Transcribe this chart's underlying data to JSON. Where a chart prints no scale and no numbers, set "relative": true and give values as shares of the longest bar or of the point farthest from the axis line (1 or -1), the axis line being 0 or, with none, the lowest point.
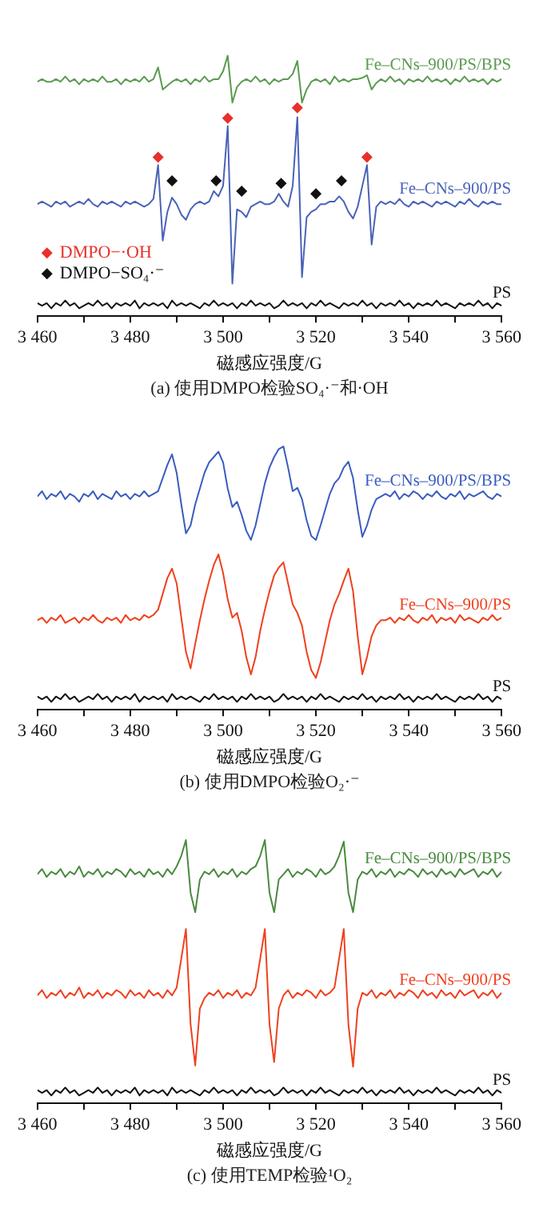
{
  "chart_data": [
    {
      "type": "line",
      "relative": true,
      "marker": "none",
      "legend": "bottom left",
      "xlabel": "磁感应强度/G",
      "xlim": [
        3460,
        3560
      ],
      "xticks": [
        {
          "value": 3460,
          "label": "3 460"
        },
        {
          "value": 3470,
          "label": null
        },
        {
          "value": 3480,
          "label": "3 480"
        },
        {
          "value": 3490,
          "label": null
        },
        {
          "value": 3500,
          "label": "3 500"
        },
        {
          "value": 3510,
          "label": null
        },
        {
          "value": 3520,
          "label": "3 520"
        },
        {
          "value": 3530,
          "label": null
        },
        {
          "value": 3540,
          "label": "3 540"
        },
        {
          "value": 3550,
          "label": null
        },
        {
          "value": 3560,
          "label": "3 560"
        }
      ],
      "annotations": [
        "(a) 使用DMPO检验SO₄·⁻和·OH"
      ],
      "x": [
        3460,
        3461,
        3462,
        3463,
        3464,
        3465,
        3466,
        3467,
        3468,
        3469,
        3470,
        3471,
        3472,
        3473,
        3474,
        3475,
        3476,
        3477,
        3478,
        3479,
        3480,
        3481,
        3482,
        3483,
        3484,
        3485,
        3486,
        3487,
        3488,
        3489,
        3490,
        3491,
        3492,
        3493,
        3494,
        3495,
        3496,
        3497,
        3498,
        3499,
        3500,
        3501,
        3502,
        3503,
        3504,
        3505,
        3506,
        3507,
        3508,
        3509,
        3510,
        3511,
        3512,
        3513,
        3514,
        3515,
        3516,
        3517,
        3518,
        3519,
        3520,
        3521,
        3522,
        3523,
        3524,
        3525,
        3526,
        3527,
        3528,
        3529,
        3530,
        3531,
        3532,
        3533,
        3534,
        3535,
        3536,
        3537,
        3538,
        3539,
        3540,
        3541,
        3542,
        3543,
        3544,
        3545,
        3546,
        3547,
        3548,
        3549,
        3550,
        3551,
        3552,
        3553,
        3554,
        3555,
        3556,
        3557,
        3558,
        3559,
        3560
      ],
      "series": [
        {
          "name": "Fe–CNs–900/PS/BPS",
          "color": "#5a9a50",
          "values": [
            0.9,
            0.91,
            0.9,
            0.9,
            0.91,
            0.9,
            0.92,
            0.9,
            0.91,
            0.89,
            0.91,
            0.9,
            0.91,
            0.9,
            0.92,
            0.9,
            0.9,
            0.91,
            0.89,
            0.91,
            0.9,
            0.91,
            0.9,
            0.92,
            0.9,
            0.91,
            0.955,
            0.87,
            0.885,
            0.9,
            0.91,
            0.9,
            0.91,
            0.89,
            0.91,
            0.9,
            0.92,
            0.9,
            0.91,
            0.91,
            0.94,
            1.0,
            0.82,
            0.88,
            0.9,
            0.91,
            0.9,
            0.92,
            0.9,
            0.91,
            0.89,
            0.91,
            0.9,
            0.91,
            0.91,
            0.93,
            0.98,
            0.82,
            0.87,
            0.9,
            0.91,
            0.9,
            0.91,
            0.89,
            0.92,
            0.9,
            0.91,
            0.9,
            0.91,
            0.91,
            0.915,
            0.925,
            0.87,
            0.895,
            0.91,
            0.9,
            0.92,
            0.9,
            0.91,
            0.89,
            0.91,
            0.9,
            0.91,
            0.9,
            0.92,
            0.9,
            0.91,
            0.9,
            0.91,
            0.89,
            0.91,
            0.9,
            0.92,
            0.9,
            0.91,
            0.9,
            0.91,
            0.89,
            0.91,
            0.9,
            0.91
          ]
        },
        {
          "name": "Fe–CNs–900/PS",
          "color": "#4a62b8",
          "values": [
            0.43,
            0.44,
            0.43,
            0.42,
            0.44,
            0.43,
            0.44,
            0.42,
            0.43,
            0.44,
            0.43,
            0.45,
            0.43,
            0.42,
            0.44,
            0.43,
            0.44,
            0.43,
            0.42,
            0.44,
            0.43,
            0.44,
            0.43,
            0.42,
            0.43,
            0.45,
            0.58,
            0.29,
            0.4,
            0.455,
            0.43,
            0.39,
            0.37,
            0.41,
            0.43,
            0.44,
            0.43,
            0.44,
            0.48,
            0.46,
            0.5,
            0.73,
            0.125,
            0.41,
            0.4,
            0.38,
            0.42,
            0.43,
            0.44,
            0.43,
            0.43,
            0.44,
            0.47,
            0.44,
            0.42,
            0.5,
            0.764,
            0.15,
            0.38,
            0.4,
            0.41,
            0.43,
            0.43,
            0.44,
            0.44,
            0.46,
            0.44,
            0.4,
            0.375,
            0.42,
            0.5,
            0.58,
            0.275,
            0.42,
            0.44,
            0.43,
            0.44,
            0.43,
            0.45,
            0.43,
            0.42,
            0.44,
            0.43,
            0.44,
            0.43,
            0.42,
            0.44,
            0.43,
            0.44,
            0.43,
            0.42,
            0.44,
            0.43,
            0.45,
            0.43,
            0.42,
            0.44,
            0.43,
            0.44,
            0.43,
            0.43
          ]
        },
        {
          "name": "PS",
          "color": "#111111",
          "values": [
            0.05,
            0.04,
            0.05,
            0.03,
            0.05,
            0.04,
            0.06,
            0.04,
            0.05,
            0.03,
            0.04,
            0.05,
            0.04,
            0.06,
            0.04,
            0.05,
            0.03,
            0.05,
            0.04,
            0.05,
            0.04,
            0.06,
            0.03,
            0.05,
            0.04,
            0.05,
            0.04,
            0.05,
            0.03,
            0.06,
            0.04,
            0.05,
            0.04,
            0.05,
            0.04,
            0.03,
            0.05,
            0.04,
            0.06,
            0.04,
            0.05,
            0.04,
            0.05,
            0.03,
            0.05,
            0.04,
            0.06,
            0.04,
            0.05,
            0.04,
            0.05,
            0.03,
            0.04,
            0.06,
            0.04,
            0.05,
            0.04,
            0.05,
            0.03,
            0.05,
            0.04,
            0.06,
            0.04,
            0.05,
            0.04,
            0.03,
            0.05,
            0.04,
            0.05,
            0.04,
            0.06,
            0.04,
            0.05,
            0.03,
            0.05,
            0.04,
            0.05,
            0.04,
            0.06,
            0.04,
            0.05,
            0.03,
            0.05,
            0.04,
            0.05,
            0.04,
            0.06,
            0.04,
            0.05,
            0.04,
            0.03,
            0.05,
            0.04,
            0.05,
            0.04,
            0.06,
            0.04,
            0.05,
            0.03,
            0.05,
            0.04
          ]
        },
        {
          "name": "DMPO−·OH",
          "type": "scatter",
          "marker": "diamond",
          "color": "#e8302a",
          "x": [
            3486,
            3501,
            3516,
            3531
          ],
          "values": [
            0.61,
            0.76,
            0.8,
            0.61
          ]
        },
        {
          "name": "DMPO−SO₄·⁻",
          "type": "scatter",
          "marker": "diamond",
          "color": "#111111",
          "x": [
            3489,
            3498.5,
            3504,
            3512.5,
            3520,
            3525.5
          ],
          "values": [
            0.52,
            0.52,
            0.48,
            0.51,
            0.47,
            0.52
          ]
        }
      ]
    },
    {
      "type": "line",
      "relative": true,
      "marker": "none",
      "xlabel": "磁感应强度/G",
      "xlim": [
        3460,
        3560
      ],
      "xticks": [
        {
          "value": 3460,
          "label": "3 460"
        },
        {
          "value": 3470,
          "label": null
        },
        {
          "value": 3480,
          "label": "3 480"
        },
        {
          "value": 3490,
          "label": null
        },
        {
          "value": 3500,
          "label": "3 500"
        },
        {
          "value": 3510,
          "label": null
        },
        {
          "value": 3520,
          "label": "3 520"
        },
        {
          "value": 3530,
          "label": null
        },
        {
          "value": 3540,
          "label": "3 540"
        },
        {
          "value": 3550,
          "label": null
        },
        {
          "value": 3560,
          "label": "3 560"
        }
      ],
      "annotations": [
        "(b) 使用DMPO检验O₂·⁻"
      ],
      "x": [
        3460,
        3461,
        3462,
        3463,
        3464,
        3465,
        3466,
        3467,
        3468,
        3469,
        3470,
        3471,
        3472,
        3473,
        3474,
        3475,
        3476,
        3477,
        3478,
        3479,
        3480,
        3481,
        3482,
        3483,
        3484,
        3485,
        3486,
        3487,
        3488,
        3489,
        3490,
        3491,
        3492,
        3493,
        3494,
        3495,
        3496,
        3497,
        3498,
        3499,
        3500,
        3501,
        3502,
        3503,
        3504,
        3505,
        3506,
        3507,
        3508,
        3509,
        3510,
        3511,
        3512,
        3513,
        3514,
        3515,
        3516,
        3517,
        3518,
        3519,
        3520,
        3521,
        3522,
        3523,
        3524,
        3525,
        3526,
        3527,
        3528,
        3529,
        3530,
        3531,
        3532,
        3533,
        3534,
        3535,
        3536,
        3537,
        3538,
        3539,
        3540,
        3541,
        3542,
        3543,
        3544,
        3545,
        3546,
        3547,
        3548,
        3549,
        3550,
        3551,
        3552,
        3553,
        3554,
        3555,
        3556,
        3557,
        3558,
        3559,
        3560
      ],
      "series": [
        {
          "name": "Fe–CNs–900/PS/BPS",
          "color": "#3a5cc0",
          "values": [
            0.81,
            0.83,
            0.8,
            0.82,
            0.81,
            0.83,
            0.8,
            0.82,
            0.81,
            0.79,
            0.82,
            0.81,
            0.83,
            0.8,
            0.82,
            0.81,
            0.8,
            0.83,
            0.81,
            0.82,
            0.8,
            0.82,
            0.81,
            0.83,
            0.81,
            0.82,
            0.83,
            0.88,
            0.93,
            0.97,
            0.9,
            0.78,
            0.67,
            0.7,
            0.78,
            0.84,
            0.9,
            0.94,
            0.96,
            0.98,
            0.94,
            0.84,
            0.77,
            0.79,
            0.74,
            0.68,
            0.645,
            0.7,
            0.78,
            0.86,
            0.92,
            0.96,
            0.99,
            1.0,
            0.92,
            0.83,
            0.843,
            0.8,
            0.72,
            0.66,
            0.645,
            0.7,
            0.76,
            0.82,
            0.86,
            0.88,
            0.92,
            0.942,
            0.88,
            0.76,
            0.657,
            0.7,
            0.76,
            0.8,
            0.81,
            0.82,
            0.81,
            0.83,
            0.8,
            0.82,
            0.81,
            0.83,
            0.82,
            0.8,
            0.82,
            0.81,
            0.83,
            0.81,
            0.8,
            0.82,
            0.81,
            0.83,
            0.8,
            0.82,
            0.81,
            0.82,
            0.83,
            0.81,
            0.8,
            0.82,
            0.81
          ]
        },
        {
          "name": "Fe–CNs–900/PS",
          "color": "#f0401e",
          "values": [
            0.34,
            0.35,
            0.33,
            0.35,
            0.34,
            0.36,
            0.33,
            0.34,
            0.35,
            0.33,
            0.35,
            0.34,
            0.36,
            0.34,
            0.33,
            0.35,
            0.34,
            0.35,
            0.33,
            0.36,
            0.34,
            0.35,
            0.34,
            0.36,
            0.35,
            0.36,
            0.38,
            0.44,
            0.5,
            0.536,
            0.48,
            0.35,
            0.22,
            0.157,
            0.25,
            0.34,
            0.42,
            0.49,
            0.55,
            0.59,
            0.52,
            0.42,
            0.35,
            0.368,
            0.3,
            0.2,
            0.134,
            0.2,
            0.3,
            0.38,
            0.45,
            0.51,
            0.54,
            0.56,
            0.48,
            0.4,
            0.368,
            0.32,
            0.22,
            0.15,
            0.121,
            0.18,
            0.26,
            0.34,
            0.4,
            0.44,
            0.49,
            0.536,
            0.45,
            0.28,
            0.135,
            0.2,
            0.28,
            0.32,
            0.34,
            0.34,
            0.35,
            0.33,
            0.35,
            0.34,
            0.36,
            0.34,
            0.33,
            0.35,
            0.34,
            0.36,
            0.33,
            0.35,
            0.34,
            0.35,
            0.33,
            0.36,
            0.34,
            0.35,
            0.34,
            0.33,
            0.35,
            0.34,
            0.36,
            0.34,
            0.35
          ]
        },
        {
          "name": "PS",
          "color": "#111111",
          "values": [
            0.05,
            0.04,
            0.05,
            0.03,
            0.05,
            0.04,
            0.06,
            0.04,
            0.05,
            0.03,
            0.04,
            0.05,
            0.04,
            0.06,
            0.04,
            0.05,
            0.03,
            0.05,
            0.04,
            0.05,
            0.04,
            0.06,
            0.03,
            0.05,
            0.04,
            0.05,
            0.04,
            0.05,
            0.03,
            0.06,
            0.04,
            0.05,
            0.04,
            0.05,
            0.04,
            0.03,
            0.05,
            0.04,
            0.06,
            0.04,
            0.05,
            0.04,
            0.05,
            0.03,
            0.05,
            0.04,
            0.06,
            0.04,
            0.05,
            0.04,
            0.05,
            0.03,
            0.04,
            0.06,
            0.04,
            0.05,
            0.04,
            0.05,
            0.03,
            0.05,
            0.04,
            0.06,
            0.04,
            0.05,
            0.04,
            0.03,
            0.05,
            0.04,
            0.05,
            0.04,
            0.06,
            0.04,
            0.05,
            0.03,
            0.05,
            0.04,
            0.05,
            0.04,
            0.06,
            0.04,
            0.05,
            0.03,
            0.05,
            0.04,
            0.05,
            0.04,
            0.06,
            0.04,
            0.05,
            0.04,
            0.03,
            0.05,
            0.04,
            0.05,
            0.04,
            0.06,
            0.04,
            0.05,
            0.03,
            0.05,
            0.04
          ]
        }
      ]
    },
    {
      "type": "line",
      "relative": true,
      "marker": "none",
      "xlabel": "磁感应强度/G",
      "xlim": [
        3460,
        3560
      ],
      "xticks": [
        {
          "value": 3460,
          "label": "3 460"
        },
        {
          "value": 3470,
          "label": null
        },
        {
          "value": 3480,
          "label": "3 480"
        },
        {
          "value": 3490,
          "label": null
        },
        {
          "value": 3500,
          "label": "3 500"
        },
        {
          "value": 3510,
          "label": null
        },
        {
          "value": 3520,
          "label": "3 520"
        },
        {
          "value": 3530,
          "label": null
        },
        {
          "value": 3540,
          "label": "3 540"
        },
        {
          "value": 3550,
          "label": null
        },
        {
          "value": 3560,
          "label": "3 560"
        }
      ],
      "annotations": [
        "(c) 使用TEMP检验¹O₂"
      ],
      "x": [
        3460,
        3461,
        3462,
        3463,
        3464,
        3465,
        3466,
        3467,
        3468,
        3469,
        3470,
        3471,
        3472,
        3473,
        3474,
        3475,
        3476,
        3477,
        3478,
        3479,
        3480,
        3481,
        3482,
        3483,
        3484,
        3485,
        3486,
        3487,
        3488,
        3489,
        3490,
        3491,
        3492,
        3493,
        3494,
        3495,
        3496,
        3497,
        3498,
        3499,
        3500,
        3501,
        3502,
        3503,
        3504,
        3505,
        3506,
        3507,
        3508,
        3509,
        3510,
        3511,
        3512,
        3513,
        3514,
        3515,
        3516,
        3517,
        3518,
        3519,
        3520,
        3521,
        3522,
        3523,
        3524,
        3525,
        3526,
        3527,
        3528,
        3529,
        3530,
        3531,
        3532,
        3533,
        3534,
        3535,
        3536,
        3537,
        3538,
        3539,
        3540,
        3541,
        3542,
        3543,
        3544,
        3545,
        3546,
        3547,
        3548,
        3549,
        3550,
        3551,
        3552,
        3553,
        3554,
        3555,
        3556,
        3557,
        3558,
        3559,
        3560
      ],
      "series": [
        {
          "name": "Fe–CNs–900/PS/BPS",
          "color": "#4a8a40",
          "values": [
            0.87,
            0.89,
            0.86,
            0.88,
            0.87,
            0.89,
            0.86,
            0.88,
            0.87,
            0.9,
            0.86,
            0.88,
            0.87,
            0.89,
            0.86,
            0.88,
            0.87,
            0.89,
            0.88,
            0.86,
            0.89,
            0.87,
            0.88,
            0.86,
            0.89,
            0.87,
            0.88,
            0.86,
            0.89,
            0.87,
            0.9,
            0.94,
            1.0,
            0.8,
            0.726,
            0.85,
            0.88,
            0.87,
            0.89,
            0.86,
            0.88,
            0.87,
            0.89,
            0.86,
            0.88,
            0.87,
            0.89,
            0.9,
            0.94,
            1.0,
            0.8,
            0.726,
            0.85,
            0.87,
            0.89,
            0.86,
            0.88,
            0.87,
            0.89,
            0.88,
            0.86,
            0.89,
            0.87,
            0.88,
            0.9,
            0.94,
            0.994,
            0.8,
            0.726,
            0.85,
            0.88,
            0.87,
            0.89,
            0.86,
            0.88,
            0.87,
            0.89,
            0.86,
            0.88,
            0.87,
            0.89,
            0.88,
            0.86,
            0.89,
            0.87,
            0.88,
            0.86,
            0.89,
            0.87,
            0.88,
            0.86,
            0.89,
            0.87,
            0.88,
            0.89,
            0.86,
            0.88,
            0.87,
            0.89,
            0.86,
            0.88
          ]
        },
        {
          "name": "Fe–CNs–900/PS",
          "color": "#f0401e",
          "values": [
            0.41,
            0.43,
            0.4,
            0.42,
            0.41,
            0.43,
            0.4,
            0.42,
            0.41,
            0.44,
            0.4,
            0.42,
            0.41,
            0.43,
            0.4,
            0.42,
            0.41,
            0.43,
            0.42,
            0.4,
            0.43,
            0.41,
            0.42,
            0.4,
            0.43,
            0.41,
            0.42,
            0.4,
            0.43,
            0.41,
            0.44,
            0.55,
            0.662,
            0.3,
            0.144,
            0.36,
            0.4,
            0.42,
            0.41,
            0.43,
            0.4,
            0.42,
            0.41,
            0.43,
            0.4,
            0.42,
            0.41,
            0.44,
            0.55,
            0.662,
            0.3,
            0.157,
            0.36,
            0.41,
            0.43,
            0.4,
            0.42,
            0.41,
            0.43,
            0.42,
            0.4,
            0.43,
            0.41,
            0.42,
            0.44,
            0.55,
            0.662,
            0.3,
            0.139,
            0.36,
            0.42,
            0.41,
            0.43,
            0.4,
            0.42,
            0.41,
            0.43,
            0.4,
            0.42,
            0.41,
            0.43,
            0.42,
            0.4,
            0.43,
            0.41,
            0.42,
            0.4,
            0.43,
            0.41,
            0.42,
            0.4,
            0.43,
            0.41,
            0.42,
            0.43,
            0.4,
            0.42,
            0.41,
            0.43,
            0.4,
            0.42
          ]
        },
        {
          "name": "PS",
          "color": "#111111",
          "values": [
            0.05,
            0.04,
            0.05,
            0.03,
            0.05,
            0.04,
            0.06,
            0.04,
            0.05,
            0.03,
            0.04,
            0.05,
            0.04,
            0.06,
            0.04,
            0.05,
            0.03,
            0.05,
            0.04,
            0.05,
            0.04,
            0.06,
            0.03,
            0.05,
            0.04,
            0.05,
            0.04,
            0.05,
            0.03,
            0.06,
            0.04,
            0.05,
            0.04,
            0.05,
            0.04,
            0.03,
            0.05,
            0.04,
            0.06,
            0.04,
            0.05,
            0.04,
            0.05,
            0.03,
            0.05,
            0.04,
            0.06,
            0.04,
            0.05,
            0.04,
            0.05,
            0.03,
            0.04,
            0.06,
            0.04,
            0.05,
            0.04,
            0.05,
            0.03,
            0.05,
            0.04,
            0.06,
            0.04,
            0.05,
            0.04,
            0.03,
            0.05,
            0.04,
            0.05,
            0.04,
            0.06,
            0.04,
            0.05,
            0.03,
            0.05,
            0.04,
            0.05,
            0.04,
            0.06,
            0.04,
            0.05,
            0.03,
            0.05,
            0.04,
            0.05,
            0.04,
            0.06,
            0.04,
            0.05,
            0.04,
            0.03,
            0.05,
            0.04,
            0.05,
            0.04,
            0.06,
            0.04,
            0.05,
            0.03,
            0.05,
            0.04
          ]
        }
      ]
    }
  ]
}
